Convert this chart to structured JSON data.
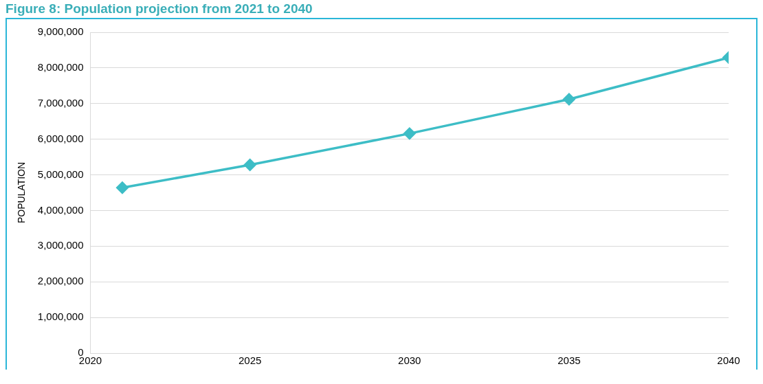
{
  "chart_data": {
    "type": "line",
    "title": "Figure 8: Population projection from 2021 to 2040",
    "ylabel": "POPULATION",
    "x": [
      2021,
      2025,
      2030,
      2035,
      2040
    ],
    "series": [
      {
        "color": "#3dbdc6",
        "values": [
          4640000,
          5280000,
          6160000,
          7120000,
          8290000
        ]
      }
    ],
    "xlim": [
      2020,
      2040
    ],
    "xticks": [
      2020,
      2025,
      2030,
      2035,
      2040
    ],
    "ylim": [
      0,
      9000000
    ],
    "yticks": [
      0,
      {
        "value": 1000000,
        "label": "1,000,000"
      },
      {
        "value": 2000000,
        "label": "2,000,000"
      },
      {
        "value": 3000000,
        "label": "3,000,000"
      },
      {
        "value": 4000000,
        "label": "4,000,000"
      },
      {
        "value": 5000000,
        "label": "5,000,000"
      },
      {
        "value": 6000000,
        "label": "6,000,000"
      },
      {
        "value": 7000000,
        "label": "7,000,000"
      },
      {
        "value": 8000000,
        "label": "8,000,000"
      },
      {
        "value": 9000000,
        "label": "9,000,000"
      }
    ],
    "grid": "y",
    "marker": "diamond",
    "legend": false
  }
}
